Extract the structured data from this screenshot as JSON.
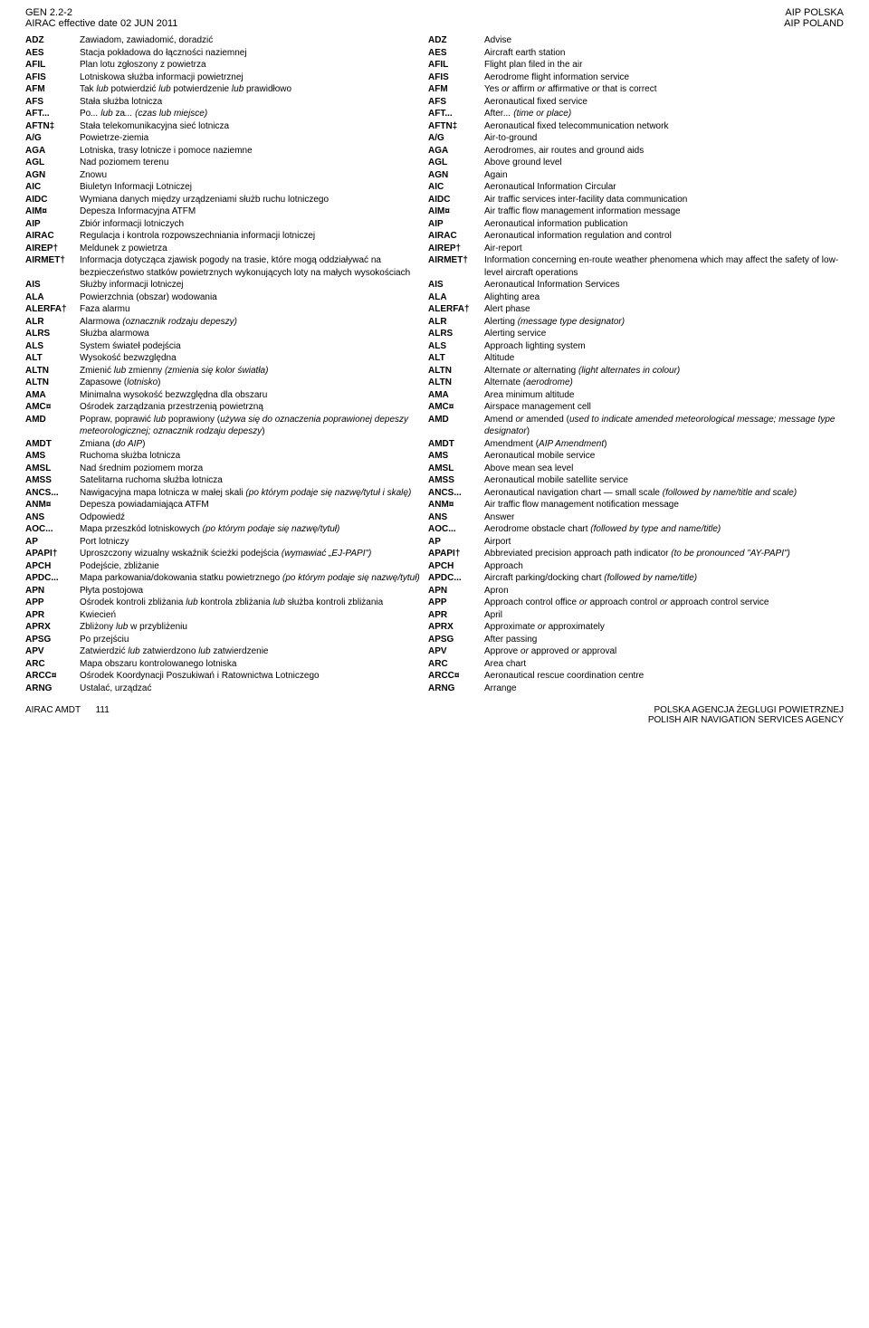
{
  "header": {
    "topLeft1": "GEN 2.2-2",
    "topLeft2": "AIRAC effective date",
    "topLeft2b": "02 JUN 2011",
    "topRight1": "AIP POLSKA",
    "topRight2": "AIP POLAND"
  },
  "footer": {
    "left": "AIRAC AMDT",
    "left2": "111",
    "right1": "POLSKA AGENCJA ŻEGLUGI POWIETRZNEJ",
    "right2": "POLISH AIR NAVIGATION SERVICES AGENCY"
  },
  "rows": [
    {
      "a": "ADZ",
      "pl": "Zawiadom, zawiadomić, doradzić",
      "b": "ADZ",
      "en": "Advise"
    },
    {
      "a": "AES",
      "pl": "Stacja pokładowa do łączności naziemnej",
      "b": "AES",
      "en": "Aircraft earth station"
    },
    {
      "a": "AFIL",
      "pl": "Plan lotu zgłoszony z powietrza",
      "b": "AFIL",
      "en": "Flight plan filed in the air"
    },
    {
      "a": "AFIS",
      "pl": "Lotniskowa służba informacji powietrznej",
      "b": "AFIS",
      "en": "Aerodrome flight information service"
    },
    {
      "a": "AFM",
      "pl": "Tak <i>lub</i> potwierdzić <i>lub</i> potwierdzenie <i>lub</i> prawidłowo",
      "b": "AFM",
      "en": "Yes <i>or</i> affirm <i>or</i> affirmative <i>or</i> that is correct"
    },
    {
      "a": "AFS",
      "pl": "Stała służba lotnicza",
      "b": "AFS",
      "en": "Aeronautical fixed service"
    },
    {
      "a": "AFT...",
      "pl": "Po<i>... lub</i> za<i>... (czas lub miejsce)</i>",
      "b": "AFT...",
      "en": "After<i>... (time or place)</i>"
    },
    {
      "a": "AFTN‡",
      "pl": "Stała telekomunikacyjna sieć lotnicza",
      "b": "AFTN‡",
      "en": "Aeronautical fixed telecommunication network"
    },
    {
      "a": "A/G",
      "pl": "Powietrze-ziemia",
      "b": "A/G",
      "en": "Air-to-ground"
    },
    {
      "a": "AGA",
      "pl": "Lotniska, trasy lotnicze i pomoce naziemne",
      "b": "AGA",
      "en": "Aerodromes, air routes and ground aids"
    },
    {
      "a": "AGL",
      "pl": "Nad poziomem terenu",
      "b": "AGL",
      "en": "Above ground level"
    },
    {
      "a": "AGN",
      "pl": "Znowu",
      "b": "AGN",
      "en": "Again"
    },
    {
      "a": "AIC",
      "pl": "Biuletyn Informacji Lotniczej",
      "b": "AIC",
      "en": "Aeronautical Information Circular"
    },
    {
      "a": "AIDC",
      "pl": "Wymiana danych między urządzeniami służb ruchu lotniczego",
      "b": "AIDC",
      "en": "Air traffic services inter-facility data communication"
    },
    {
      "a": "AIM¤",
      "pl": "Depesza Informacyjna ATFM",
      "b": "AIM¤",
      "en": "Air traffic flow management information message"
    },
    {
      "a": "AIP",
      "pl": "Zbiór informacji lotniczych",
      "b": "AIP",
      "en": "Aeronautical information publication"
    },
    {
      "a": "AIRAC",
      "pl": "Regulacja i kontrola rozpowszechniania informacji lotniczej",
      "b": "AIRAC",
      "en": "Aeronautical information regulation and control"
    },
    {
      "a": "AIREP†",
      "pl": "Meldunek z powietrza",
      "b": "AIREP†",
      "en": "Air-report"
    },
    {
      "a": "AIRMET†",
      "pl": "Informacja dotycząca zjawisk pogody na trasie, które mogą oddziaływać na bezpieczeństwo statków powietrznych wykonujących loty na małych wysokościach",
      "b": "AIRMET†",
      "en": "Information concerning en-route weather phenomena which may affect the safety of low-level aircraft operations"
    },
    {
      "a": "AIS",
      "pl": "Służby informacji lotniczej",
      "b": "AIS",
      "en": "Aeronautical Information Services"
    },
    {
      "a": "ALA",
      "pl": "Powierzchnia (obszar) wodowania",
      "b": "ALA",
      "en": "Alighting area"
    },
    {
      "a": "ALERFA†",
      "pl": "Faza alarmu",
      "b": "ALERFA†",
      "en": "Alert phase"
    },
    {
      "a": "ALR",
      "pl": "Alarmowa <i>(oznacznik rodzaju depeszy)</i>",
      "b": "ALR",
      "en": "Alerting <i>(message type designator)</i>"
    },
    {
      "a": "ALRS",
      "pl": "Służba alarmowa",
      "b": "ALRS",
      "en": "Alerting service"
    },
    {
      "a": "ALS",
      "pl": "System świateł podejścia",
      "b": "ALS",
      "en": "Approach lighting system"
    },
    {
      "a": "ALT",
      "pl": "Wysokość bezwzględna",
      "b": "ALT",
      "en": "Altitude"
    },
    {
      "a": "ALTN",
      "pl": "Zmienić <i>lub</i> zmienny <i>(zmienia się kolor światła)</i>",
      "b": "ALTN",
      "en": "Alternate <i>or</i> alternating <i>(light alternates in colour)</i>"
    },
    {
      "a": "ALTN",
      "pl": "Zapasowe (<i>lotnisko</i>)",
      "b": "ALTN",
      "en": "Alternate <i>(aerodrome)</i>"
    },
    {
      "a": "AMA",
      "pl": "Minimalna wysokość bezwzględna dla obszaru",
      "b": "AMA",
      "en": "Area minimum altitude"
    },
    {
      "a": "AMC¤",
      "pl": "Ośrodek zarządzania przestrzenią powietrzną",
      "b": "AMC¤",
      "en": "Airspace management cell"
    },
    {
      "a": "AMD",
      "pl": "Popraw, poprawić <i>lub</i> poprawiony (<i>używa się do oznaczenia poprawionej depeszy meteorologicznej; oznacznik rodzaju depeszy</i>)",
      "b": "AMD",
      "en": "Amend <i>or</i> amended (<i>used to indicate amended meteorological message; message type designator</i>)"
    },
    {
      "a": "AMDT",
      "pl": "Zmiana (<i>do AIP</i>)",
      "b": "AMDT",
      "en": "Amendment (<i>AIP Amendment</i>)"
    },
    {
      "a": "AMS",
      "pl": "Ruchoma służba lotnicza",
      "b": "AMS",
      "en": "Aeronautical mobile service"
    },
    {
      "a": "AMSL",
      "pl": "Nad średnim poziomem morza",
      "b": "AMSL",
      "en": "Above mean sea level"
    },
    {
      "a": "AMSS",
      "pl": "Satelitarna ruchoma służba lotnicza",
      "b": "AMSS",
      "en": "Aeronautical mobile satellite service"
    },
    {
      "a": "ANCS...",
      "pl": "Nawigacyjna mapa lotnicza w małej skali <i>(po którym podaje się nazwę/tytuł i skalę)</i>",
      "b": "ANCS...",
      "en": "Aeronautical navigation chart — small scale <i>(followed by name/title and scale)</i>"
    },
    {
      "a": "ANM¤",
      "pl": "Depesza powiadamiająca ATFM",
      "b": "ANM¤",
      "en": "Air traffic flow management notification message"
    },
    {
      "a": "ANS",
      "pl": "Odpowiedź",
      "b": "ANS",
      "en": "Answer"
    },
    {
      "a": "AOC...",
      "pl": "Mapa przeszkód lotniskowych <i>(po którym podaje się nazwę/tytuł)</i>",
      "b": "AOC...",
      "en": "Aerodrome obstacle chart <i>(followed by type and name/title)</i>"
    },
    {
      "a": "AP",
      "pl": "Port lotniczy",
      "b": "AP",
      "en": "Airport"
    },
    {
      "a": "APAPI†",
      "pl": "Uproszczony wizualny wskaźnik ścieżki podejścia <i>(wymawiać „EJ-PAPI\")</i>",
      "b": "APAPI†",
      "en": "Abbreviated precision approach path indicator <i>(to be pronounced \"AY-PAPI\")</i>"
    },
    {
      "a": "APCH",
      "pl": "Podejście, zbliżanie",
      "b": "APCH",
      "en": "Approach"
    },
    {
      "a": "APDC...",
      "pl": "Mapa parkowania/dokowania statku powietrznego <i>(po którym podaje się nazwę/tytuł)</i>",
      "b": "APDC...",
      "en": "Aircraft parking/docking chart <i>(followed by name/title)</i>"
    },
    {
      "a": "APN",
      "pl": "Płyta postojowa",
      "b": "APN",
      "en": "Apron"
    },
    {
      "a": "APP",
      "pl": "Ośrodek kontroli zbliżania <i>lub</i> kontrola zbliżania <i>lub</i> służba kontroli zbliżania",
      "b": "APP",
      "en": "Approach control office <i>or</i> approach control <i>or</i> approach control service"
    },
    {
      "a": "APR",
      "pl": "Kwiecień",
      "b": "APR",
      "en": "April"
    },
    {
      "a": "APRX",
      "pl": "Zbliżony <i>lub</i> w przybliżeniu",
      "b": "APRX",
      "en": "Approximate <i>or</i> approximately"
    },
    {
      "a": "APSG",
      "pl": "Po przejściu",
      "b": "APSG",
      "en": "After passing"
    },
    {
      "a": "APV",
      "pl": "Zatwierdzić <i>lub</i> zatwierdzono <i>lub</i> zatwierdzenie",
      "b": "APV",
      "en": "Approve <i>or</i> approved <i>or</i> approval"
    },
    {
      "a": "ARC",
      "pl": "Mapa obszaru kontrolowanego lotniska",
      "b": "ARC",
      "en": "Area chart"
    },
    {
      "a": "ARCC¤",
      "pl": "Ośrodek Koordynacji Poszukiwań i Ratownictwa Lotniczego",
      "b": "ARCC¤",
      "en": "Aeronautical rescue coordination centre"
    },
    {
      "a": "ARNG",
      "pl": "Ustalać, urządzać",
      "b": "ARNG",
      "en": "Arrange"
    }
  ]
}
